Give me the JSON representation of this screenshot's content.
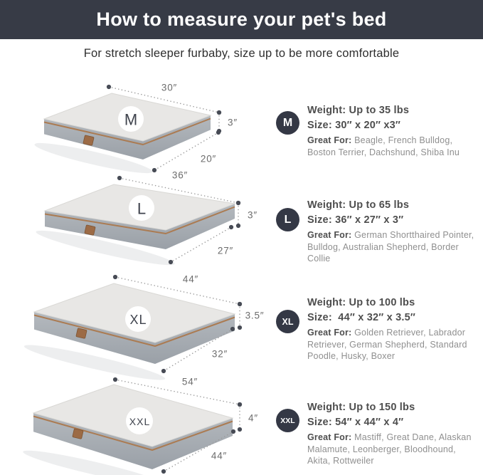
{
  "header": {
    "title": "How to measure your pet's bed"
  },
  "subtitle": "For stretch sleeper furbaby, size up to be more comfortable",
  "colors": {
    "header_bg": "#373B46",
    "badge_bg": "#343845",
    "piping": "#AB7B52",
    "bed_top": "#E8E7E5",
    "bed_side_light": "#B4B9BE",
    "bed_side_dark": "#9AA0A7",
    "dim_text": "#6C6C6C",
    "dim_dot": "#474B55"
  },
  "sizes": [
    {
      "badge": "M",
      "weight": "Weight: Up to 35 lbs",
      "size": "Size: 30″ x 20″ x3″",
      "great_for_label": "Great For:",
      "great_for": "Beagle, French Bulldog, Boston Terrier, Dachshund, Shiba Inu",
      "dims": {
        "width": "30″",
        "height": "3″",
        "depth": "20″"
      }
    },
    {
      "badge": "L",
      "weight": "Weight: Up to 65 lbs",
      "size": "Size: 36″ x 27″ x 3″",
      "great_for_label": "Great For:",
      "great_for": "German Shortthaired Pointer, Bulldog, Australian Shepherd, Border Collie",
      "dims": {
        "width": "36″",
        "height": "3″",
        "depth": "27″"
      }
    },
    {
      "badge": "XL",
      "weight": "Weight: Up to 100 lbs",
      "size": "Size:  44″ x 32″ x 3.5″",
      "great_for_label": "Great For:",
      "great_for": "Golden Retriever, Labrador Retriever, German Shepherd, Standard Poodle, Husky, Boxer",
      "dims": {
        "width": "44″",
        "height": "3.5″",
        "depth": "32″"
      }
    },
    {
      "badge": "XXL",
      "weight": "Weight: Up to 150 lbs",
      "size": "Size: 54″ x 44″ x 4″",
      "great_for_label": "Great For:",
      "great_for": "Mastiff, Great Dane, Alaskan Malamute, Leonberger, Bloodhound, Akita, Rottweiler",
      "dims": {
        "width": "54″",
        "height": "4″",
        "depth": "44″"
      }
    }
  ]
}
